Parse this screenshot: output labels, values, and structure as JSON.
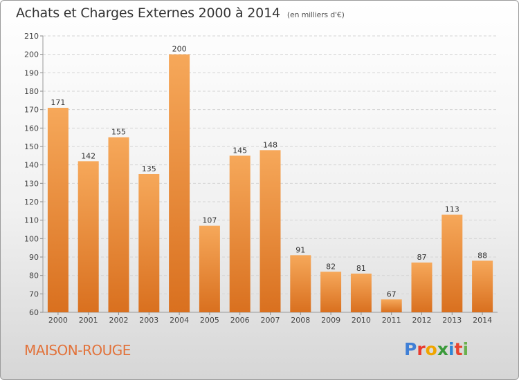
{
  "header": {
    "title": "Achats et Charges Externes 2000 à 2014",
    "subtitle": "(en milliers d'€)"
  },
  "footer": {
    "commune": "MAISON-ROUGE",
    "brand": "Proxiti",
    "brand_colors": [
      "#3f7fd6",
      "#e83a2f",
      "#f0a500",
      "#3a9a3a",
      "#2f86d6",
      "#e8442f",
      "#6ab04c"
    ]
  },
  "colors": {
    "bar_light": "#f6a85a",
    "bar_dark": "#d9701f",
    "grid": "#d4d4d4",
    "axis_text": "#444444",
    "label_text": "#333333"
  },
  "chart_data": {
    "type": "bar",
    "title": "Achats et Charges Externes 2000 à 2014",
    "subtitle": "(en milliers d'€)",
    "xlabel": "",
    "ylabel": "",
    "categories": [
      "2000",
      "2001",
      "2002",
      "2003",
      "2004",
      "2005",
      "2006",
      "2007",
      "2008",
      "2009",
      "2010",
      "2011",
      "2012",
      "2013",
      "2014"
    ],
    "values": [
      171,
      142,
      155,
      135,
      200,
      107,
      145,
      148,
      91,
      82,
      81,
      67,
      87,
      113,
      88
    ],
    "ylim": [
      60,
      210
    ],
    "yticks": [
      60,
      70,
      80,
      90,
      100,
      110,
      120,
      130,
      140,
      150,
      160,
      170,
      180,
      190,
      200,
      210
    ],
    "grid": true,
    "legend": "none"
  }
}
